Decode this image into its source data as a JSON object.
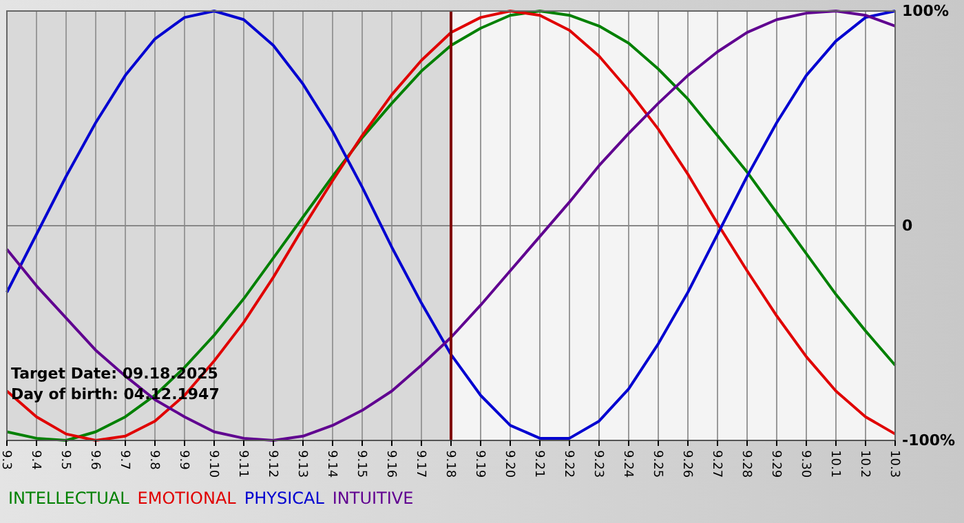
{
  "chart_data": {
    "type": "line",
    "categories": [
      "9.3",
      "9.4",
      "9.5",
      "9.6",
      "9.7",
      "9.8",
      "9.9",
      "9.10",
      "9.11",
      "9.12",
      "9.13",
      "9.14",
      "9.15",
      "9.16",
      "9.17",
      "9.18",
      "9.19",
      "9.20",
      "9.21",
      "9.22",
      "9.23",
      "9.24",
      "9.25",
      "9.26",
      "9.27",
      "9.28",
      "9.29",
      "9.30",
      "10.1",
      "10.2",
      "10.3"
    ],
    "series": [
      {
        "name": "INTELLECTUAL",
        "color": "#008000",
        "values": [
          -96,
          -99,
          -100,
          -96,
          -89,
          -79,
          -66,
          -51,
          -34,
          -15,
          4,
          23,
          41,
          57,
          72,
          84,
          92,
          98,
          100,
          98,
          93,
          85,
          73,
          59,
          42,
          25,
          6,
          -13,
          -32,
          -49,
          -65
        ]
      },
      {
        "name": "EMOTIONAL",
        "color": "#e00000",
        "values": [
          -77,
          -89,
          -97,
          -100,
          -98,
          -91,
          -79,
          -63,
          -45,
          -24,
          -1,
          21,
          42,
          61,
          77,
          90,
          97,
          100,
          98,
          91,
          79,
          63,
          45,
          24,
          1,
          -21,
          -42,
          -61,
          -77,
          -89,
          -97
        ]
      },
      {
        "name": "PHYSICAL",
        "color": "#0000d0",
        "values": [
          -31,
          -4,
          23,
          48,
          70,
          87,
          97,
          100,
          96,
          84,
          66,
          44,
          18,
          -10,
          -36,
          -60,
          -79,
          -93,
          -99,
          -99,
          -91,
          -76,
          -55,
          -31,
          -4,
          23,
          48,
          70,
          86,
          97,
          100
        ]
      },
      {
        "name": "INTUITIVE",
        "color": "#600090",
        "values": [
          -11,
          -28,
          -43,
          -58,
          -70,
          -81,
          -89,
          -96,
          -99,
          -100,
          -98,
          -93,
          -86,
          -77,
          -65,
          -52,
          -37,
          -21,
          -5,
          11,
          28,
          43,
          57,
          70,
          81,
          90,
          96,
          99,
          100,
          98,
          93
        ]
      }
    ],
    "ylim": [
      -100,
      100
    ],
    "yticks": [
      {
        "value": -100,
        "label": "-100%"
      },
      0,
      {
        "value": 100,
        "label": "100%"
      }
    ],
    "grid": true,
    "legend": "bottom",
    "marker": "none",
    "line_style": "solid",
    "ref_lines": [
      {
        "axis": "x",
        "value": "9.18",
        "color": "#800000"
      }
    ],
    "bands": [
      {
        "axis": "x",
        "from": "9.3",
        "to": "9.18",
        "color": "#d9d9d9"
      }
    ],
    "annotations": [
      "Target Date: 09.18.2025",
      "Day of birth: 04.12.1947"
    ]
  }
}
